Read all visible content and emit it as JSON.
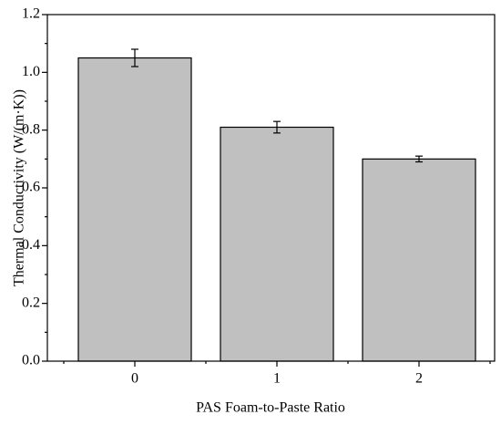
{
  "chart_data": {
    "type": "bar",
    "x_label": "PAS Foam-to-Paste Ratio",
    "y_label": "Thermal Conductivity (W/(m·K))",
    "categories": [
      "0",
      "1",
      "2"
    ],
    "values": [
      1.05,
      0.81,
      0.7
    ],
    "errors": [
      0.03,
      0.02,
      0.01
    ],
    "color": "#c0c0c0",
    "ylim": [
      0,
      1.2
    ],
    "yticks": [
      {
        "value": 0,
        "label": "0.0"
      },
      0.2,
      0.4,
      0.6,
      0.8,
      {
        "value": 1,
        "label": "1.0"
      },
      1.2
    ],
    "grid": false
  }
}
